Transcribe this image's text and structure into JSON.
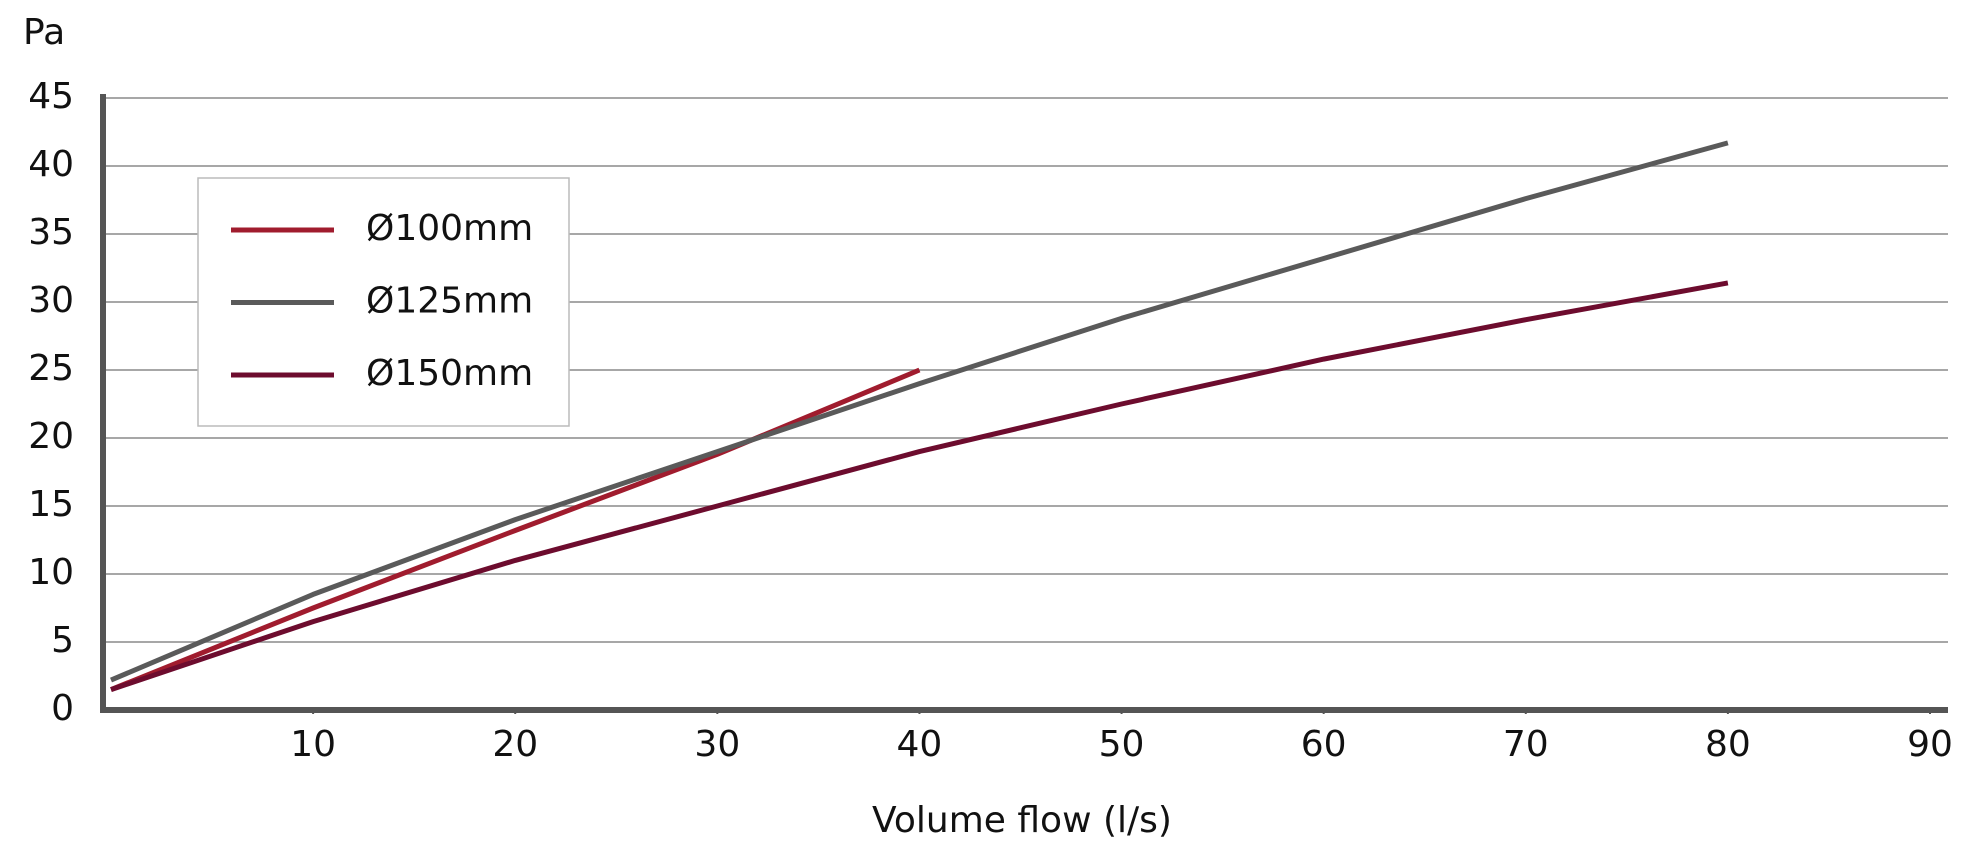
{
  "chart_data": {
    "type": "line",
    "y_axis_label": "Pa",
    "x_axis_label": "Volume flow (l/s)",
    "xlim": [
      0,
      90
    ],
    "xticks": [
      10,
      20,
      30,
      40,
      50,
      60,
      70,
      80,
      90
    ],
    "ylim": [
      0,
      45
    ],
    "yticks": [
      0,
      5,
      10,
      15,
      20,
      25,
      30,
      35,
      40,
      45
    ],
    "grid": true,
    "legend": "upper left",
    "series": [
      {
        "name": "Ø100mm",
        "color": "#a01c2e",
        "x": [
          0,
          10,
          20,
          30,
          40
        ],
        "values": [
          1.5,
          7.5,
          13.2,
          18.8,
          25
        ]
      },
      {
        "name": "Ø125mm",
        "color": "#5a5a5a",
        "x": [
          0,
          10,
          20,
          30,
          40,
          50,
          60,
          70,
          80
        ],
        "values": [
          2.2,
          8.5,
          14,
          19,
          24,
          28.8,
          33.2,
          37.6,
          41.7
        ]
      },
      {
        "name": "Ø150mm",
        "color": "#6d0c2e",
        "x": [
          0,
          10,
          20,
          30,
          40,
          50,
          60,
          70,
          80
        ],
        "values": [
          1.5,
          6.5,
          11,
          15,
          19,
          22.5,
          25.8,
          28.7,
          31.4
        ]
      }
    ]
  }
}
